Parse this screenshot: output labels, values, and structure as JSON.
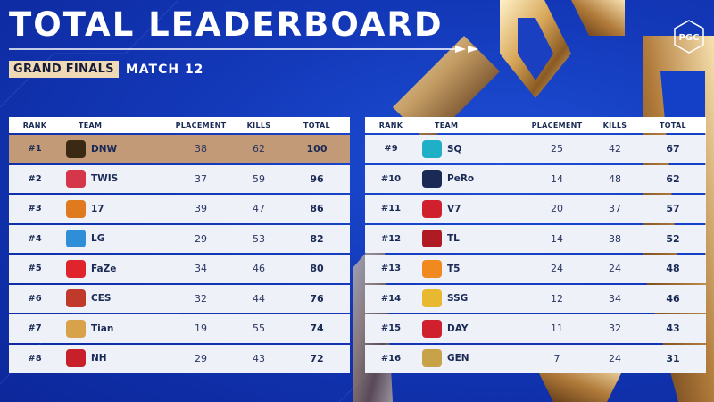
{
  "header": {
    "title": "TOTAL LEADERBOARD",
    "badge": "GRAND FINALS",
    "subtitle": "MATCH 12",
    "logo_text": "PGC"
  },
  "columns": {
    "rank": "RANK",
    "team": "TEAM",
    "placement": "PLACEMENT",
    "kills": "KILLS",
    "total": "TOTAL"
  },
  "left_rows": [
    {
      "rank": "#1",
      "team": "DNW",
      "placement": "38",
      "kills": "62",
      "total": "100",
      "logo_color": "#3a2a14",
      "logo_icon": "dnw-logo"
    },
    {
      "rank": "#2",
      "team": "TWIS",
      "placement": "37",
      "kills": "59",
      "total": "96",
      "logo_color": "#d5364a",
      "logo_icon": "twis-logo"
    },
    {
      "rank": "#3",
      "team": "17",
      "placement": "39",
      "kills": "47",
      "total": "86",
      "logo_color": "#e07a1e",
      "logo_icon": "17-gaming-logo"
    },
    {
      "rank": "#4",
      "team": "LG",
      "placement": "29",
      "kills": "53",
      "total": "82",
      "logo_color": "#2e8fd8",
      "logo_icon": "lg-logo"
    },
    {
      "rank": "#5",
      "team": "FaZe",
      "placement": "34",
      "kills": "46",
      "total": "80",
      "logo_color": "#e0242b",
      "logo_icon": "faze-logo"
    },
    {
      "rank": "#6",
      "team": "CES",
      "placement": "32",
      "kills": "44",
      "total": "76",
      "logo_color": "#c0392b",
      "logo_icon": "ces-logo"
    },
    {
      "rank": "#7",
      "team": "Tian",
      "placement": "19",
      "kills": "55",
      "total": "74",
      "logo_color": "#d8a24a",
      "logo_icon": "tian-logo"
    },
    {
      "rank": "#8",
      "team": "NH",
      "placement": "29",
      "kills": "43",
      "total": "72",
      "logo_color": "#c8202a",
      "logo_icon": "nh-logo"
    }
  ],
  "right_rows": [
    {
      "rank": "#9",
      "team": "SQ",
      "placement": "25",
      "kills": "42",
      "total": "67",
      "logo_color": "#1fb0c8",
      "logo_icon": "sq-logo"
    },
    {
      "rank": "#10",
      "team": "PeRo",
      "placement": "14",
      "kills": "48",
      "total": "62",
      "logo_color": "#1a2a55",
      "logo_icon": "pero-logo"
    },
    {
      "rank": "#11",
      "team": "V7",
      "placement": "20",
      "kills": "37",
      "total": "57",
      "logo_color": "#d0202e",
      "logo_icon": "v7-logo"
    },
    {
      "rank": "#12",
      "team": "TL",
      "placement": "14",
      "kills": "38",
      "total": "52",
      "logo_color": "#b01a22",
      "logo_icon": "tyloo-logo"
    },
    {
      "rank": "#13",
      "team": "T5",
      "placement": "24",
      "kills": "24",
      "total": "48",
      "logo_color": "#f08a1e",
      "logo_icon": "t5-logo"
    },
    {
      "rank": "#14",
      "team": "SSG",
      "placement": "12",
      "kills": "34",
      "total": "46",
      "logo_color": "#e8b830",
      "logo_icon": "ssg-logo"
    },
    {
      "rank": "#15",
      "team": "DAY",
      "placement": "11",
      "kills": "32",
      "total": "43",
      "logo_color": "#d0202e",
      "logo_icon": "day-logo"
    },
    {
      "rank": "#16",
      "team": "GEN",
      "placement": "7",
      "kills": "24",
      "total": "31",
      "logo_color": "#c8a248",
      "logo_icon": "gen-logo"
    }
  ]
}
